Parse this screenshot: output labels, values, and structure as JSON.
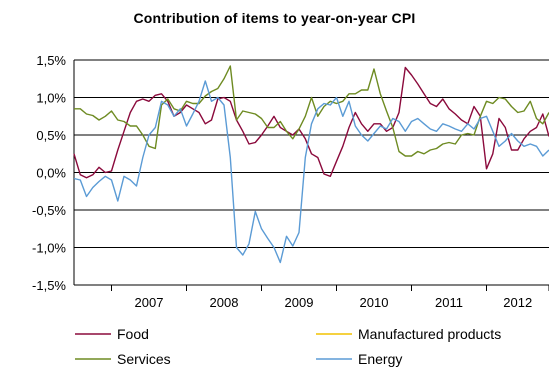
{
  "chart_data": {
    "type": "line",
    "title": "Contribution of items to year-on-year CPI",
    "xlabel": "",
    "ylabel": "",
    "ylim": [
      -1.5,
      1.5
    ],
    "y_ticks": [
      "1,5%",
      "1,0%",
      "0,5%",
      "0,0%",
      "-0,5%",
      "-1,0%",
      "-1,5%"
    ],
    "y_tick_values": [
      1.5,
      1.0,
      0.5,
      0.0,
      -0.5,
      -1.0,
      -1.5
    ],
    "x_range": [
      "2006-07",
      "2012-12"
    ],
    "x_ticks": [
      "2007",
      "2008",
      "2009",
      "2010",
      "2011",
      "2012"
    ],
    "grid": "horizontal",
    "legend_position": "bottom",
    "series": [
      {
        "name": "Food",
        "color": "#8B0A3C",
        "values": [
          0.25,
          -0.03,
          -0.07,
          -0.03,
          0.07,
          0.0,
          0.02,
          0.3,
          0.55,
          0.8,
          0.95,
          0.98,
          0.95,
          1.03,
          1.05,
          0.95,
          0.75,
          0.8,
          0.9,
          0.85,
          0.8,
          0.65,
          0.7,
          0.98,
          1.0,
          0.95,
          0.7,
          0.55,
          0.38,
          0.4,
          0.5,
          0.62,
          0.75,
          0.6,
          0.55,
          0.5,
          0.58,
          0.45,
          0.25,
          0.2,
          -0.02,
          -0.05,
          0.15,
          0.35,
          0.6,
          0.8,
          0.65,
          0.55,
          0.65,
          0.65,
          0.55,
          0.6,
          0.8,
          1.4,
          1.3,
          1.18,
          1.05,
          0.92,
          0.88,
          0.98,
          0.85,
          0.78,
          0.7,
          0.65,
          0.88,
          0.75,
          0.05,
          0.25,
          0.72,
          0.6,
          0.3,
          0.3,
          0.45,
          0.55,
          0.6,
          0.78,
          0.48
        ]
      },
      {
        "name": "Services",
        "color": "#6E8B22",
        "values": [
          0.85,
          0.85,
          0.78,
          0.76,
          0.7,
          0.75,
          0.82,
          0.7,
          0.68,
          0.62,
          0.62,
          0.5,
          0.35,
          0.32,
          0.9,
          0.98,
          0.85,
          0.82,
          0.95,
          0.92,
          0.92,
          1.02,
          1.08,
          1.12,
          1.25,
          1.42,
          0.7,
          0.82,
          0.8,
          0.78,
          0.72,
          0.6,
          0.6,
          0.68,
          0.55,
          0.45,
          0.58,
          0.75,
          1.0,
          0.75,
          0.88,
          0.95,
          0.92,
          0.95,
          1.05,
          1.05,
          1.1,
          1.1,
          1.38,
          1.05,
          0.82,
          0.6,
          0.28,
          0.22,
          0.22,
          0.28,
          0.25,
          0.3,
          0.32,
          0.38,
          0.4,
          0.38,
          0.5,
          0.52,
          0.5,
          0.75,
          0.95,
          0.92,
          1.0,
          0.98,
          0.88,
          0.8,
          0.82,
          0.95,
          0.72,
          0.65,
          0.8
        ]
      },
      {
        "name": "Energy",
        "color": "#5B9BD5",
        "values": [
          -0.08,
          -0.1,
          -0.32,
          -0.2,
          -0.12,
          -0.05,
          -0.1,
          -0.38,
          -0.05,
          -0.1,
          -0.18,
          0.2,
          0.5,
          0.6,
          0.95,
          0.9,
          0.75,
          0.85,
          0.62,
          0.78,
          0.95,
          1.22,
          0.95,
          1.0,
          0.9,
          0.2,
          -1.0,
          -1.1,
          -0.95,
          -0.52,
          -0.75,
          -0.88,
          -1.0,
          -1.2,
          -0.85,
          -0.98,
          -0.8,
          0.2,
          0.65,
          0.85,
          0.92,
          0.9,
          1.0,
          0.75,
          0.95,
          0.62,
          0.5,
          0.42,
          0.52,
          0.62,
          0.58,
          0.72,
          0.68,
          0.55,
          0.68,
          0.72,
          0.65,
          0.58,
          0.55,
          0.65,
          0.62,
          0.58,
          0.55,
          0.65,
          0.58,
          0.72,
          0.75,
          0.55,
          0.35,
          0.42,
          0.52,
          0.42,
          0.35,
          0.38,
          0.35,
          0.22,
          0.3
        ]
      },
      {
        "name": "Manufactured products",
        "color": "#F2C200",
        "values": []
      }
    ]
  },
  "legend": {
    "food": "Food",
    "services": "Services",
    "manufactured": "Manufactured products",
    "energy": "Energy"
  }
}
